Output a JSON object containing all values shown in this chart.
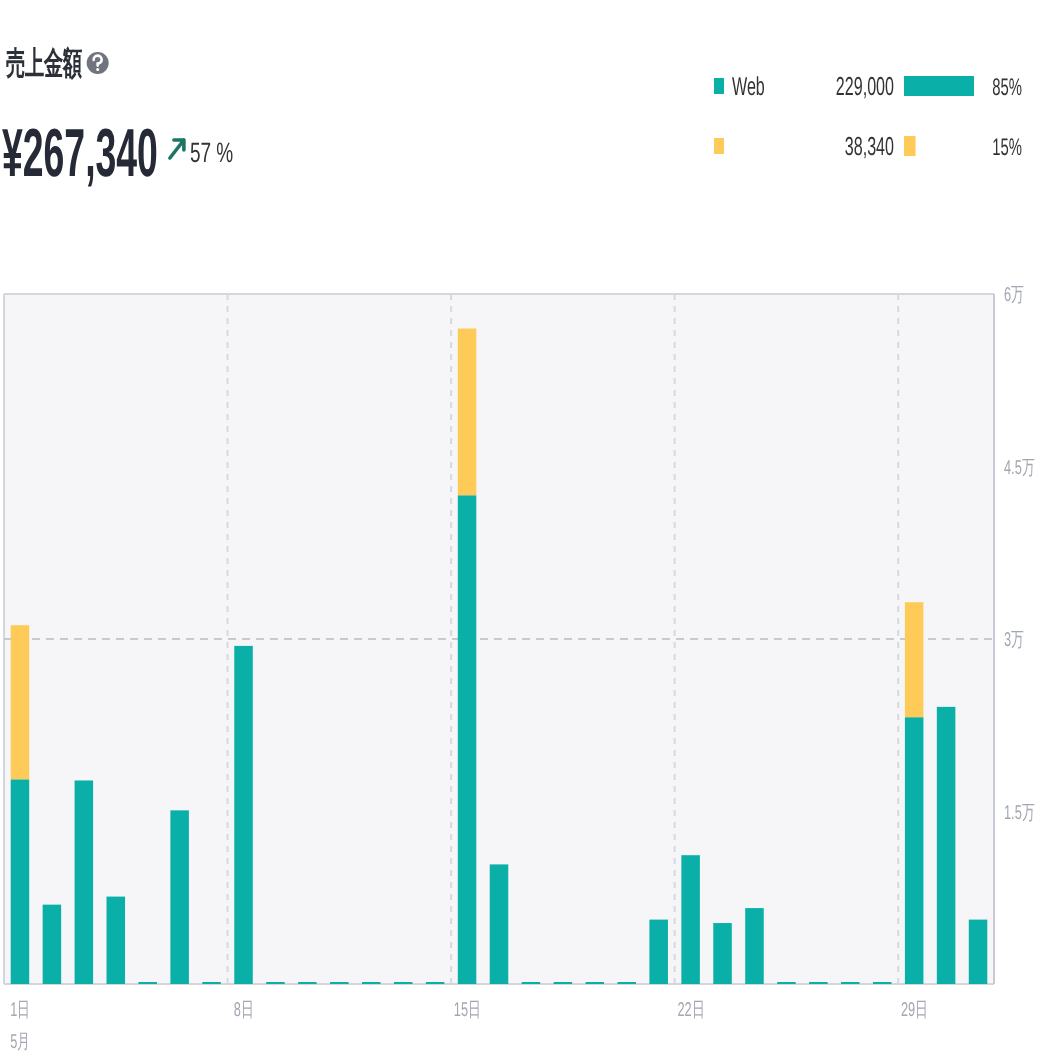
{
  "chart_data": {
    "type": "bar",
    "title": "売上金額",
    "subtitle": "¥267,340",
    "xlabel": "5月",
    "annotations": [
      "57 %",
      "229,000",
      "85%",
      "38,340",
      "15%"
    ],
    "categories": [
      "1日",
      null,
      null,
      null,
      null,
      null,
      null,
      "8日",
      null,
      null,
      null,
      null,
      null,
      null,
      "15日",
      null,
      null,
      null,
      null,
      null,
      null,
      "22日",
      null,
      null,
      null,
      null,
      null,
      null,
      "29日",
      null,
      null
    ],
    "stacked": true,
    "series": [
      {
        "name": "Web",
        "color": "#0aafa7",
        "values": [
          1.78,
          0.69,
          1.77,
          0.76,
          0,
          1.51,
          0,
          2.94,
          0,
          0,
          0,
          0,
          0,
          0,
          4.25,
          1.04,
          0,
          0,
          0,
          0,
          0.56,
          1.12,
          0.53,
          0.66,
          0,
          0,
          0,
          0,
          2.32,
          2.41,
          0.56
        ]
      },
      {
        "color": "#fecb58",
        "values": [
          1.34,
          0,
          0,
          0,
          0,
          0,
          0,
          0,
          0,
          0,
          0,
          0,
          0,
          0,
          1.45,
          0,
          0,
          0,
          0,
          0,
          0,
          0,
          0,
          0,
          0,
          0,
          0,
          0,
          1.0,
          0,
          0
        ]
      }
    ],
    "ylim": [
      0,
      6
    ],
    "yticks": [
      {
        "value": 1.5,
        "label": "1.5万"
      },
      {
        "value": 3,
        "label": "3万"
      },
      {
        "value": 4.5,
        "label": "4.5万"
      },
      {
        "value": 6,
        "label": "6万"
      }
    ],
    "grid": "x",
    "ref_lines": [
      {
        "axis": "y",
        "value": 3,
        "color": "#c5c9d2",
        "line_style": "dashed"
      }
    ],
    "legend": "top right"
  }
}
